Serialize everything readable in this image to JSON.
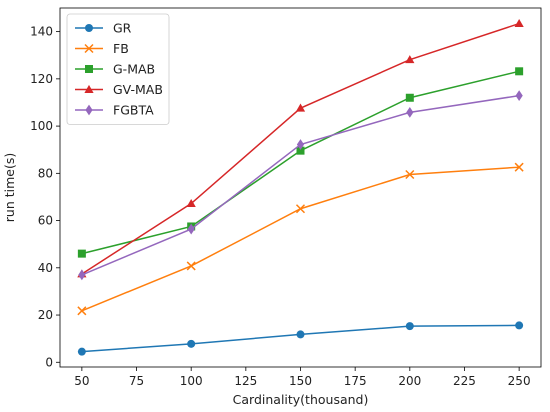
{
  "chart_data": {
    "type": "line",
    "title": "",
    "xlabel": "Cardinality(thousand)",
    "ylabel": "run time(s)",
    "xlim": [
      40,
      260
    ],
    "ylim": [
      -2,
      150
    ],
    "xticks": [
      50,
      75,
      100,
      125,
      150,
      175,
      200,
      225,
      250
    ],
    "yticks": [
      0,
      20,
      40,
      60,
      80,
      100,
      120,
      140
    ],
    "grid": false,
    "legend_position": "top-left",
    "x": [
      50,
      100,
      150,
      200,
      250
    ],
    "series": [
      {
        "name": "GR",
        "marker": "circle",
        "color": "#1f77b4",
        "values": [
          4.5,
          7.8,
          11.8,
          15.3,
          15.6
        ]
      },
      {
        "name": "FB",
        "marker": "x",
        "color": "#ff7f0e",
        "values": [
          21.8,
          40.8,
          65.0,
          79.5,
          82.6
        ]
      },
      {
        "name": "G-MAB",
        "marker": "square",
        "color": "#2ca02c",
        "values": [
          46.0,
          57.5,
          89.6,
          112.0,
          123.2
        ]
      },
      {
        "name": "GV-MAB",
        "marker": "triangle",
        "color": "#d62728",
        "values": [
          37.4,
          67.2,
          107.6,
          128.1,
          143.4
        ]
      },
      {
        "name": "FGBTA",
        "marker": "diamond",
        "color": "#9467bd",
        "values": [
          37.0,
          56.4,
          92.2,
          105.8,
          112.9
        ]
      }
    ]
  }
}
